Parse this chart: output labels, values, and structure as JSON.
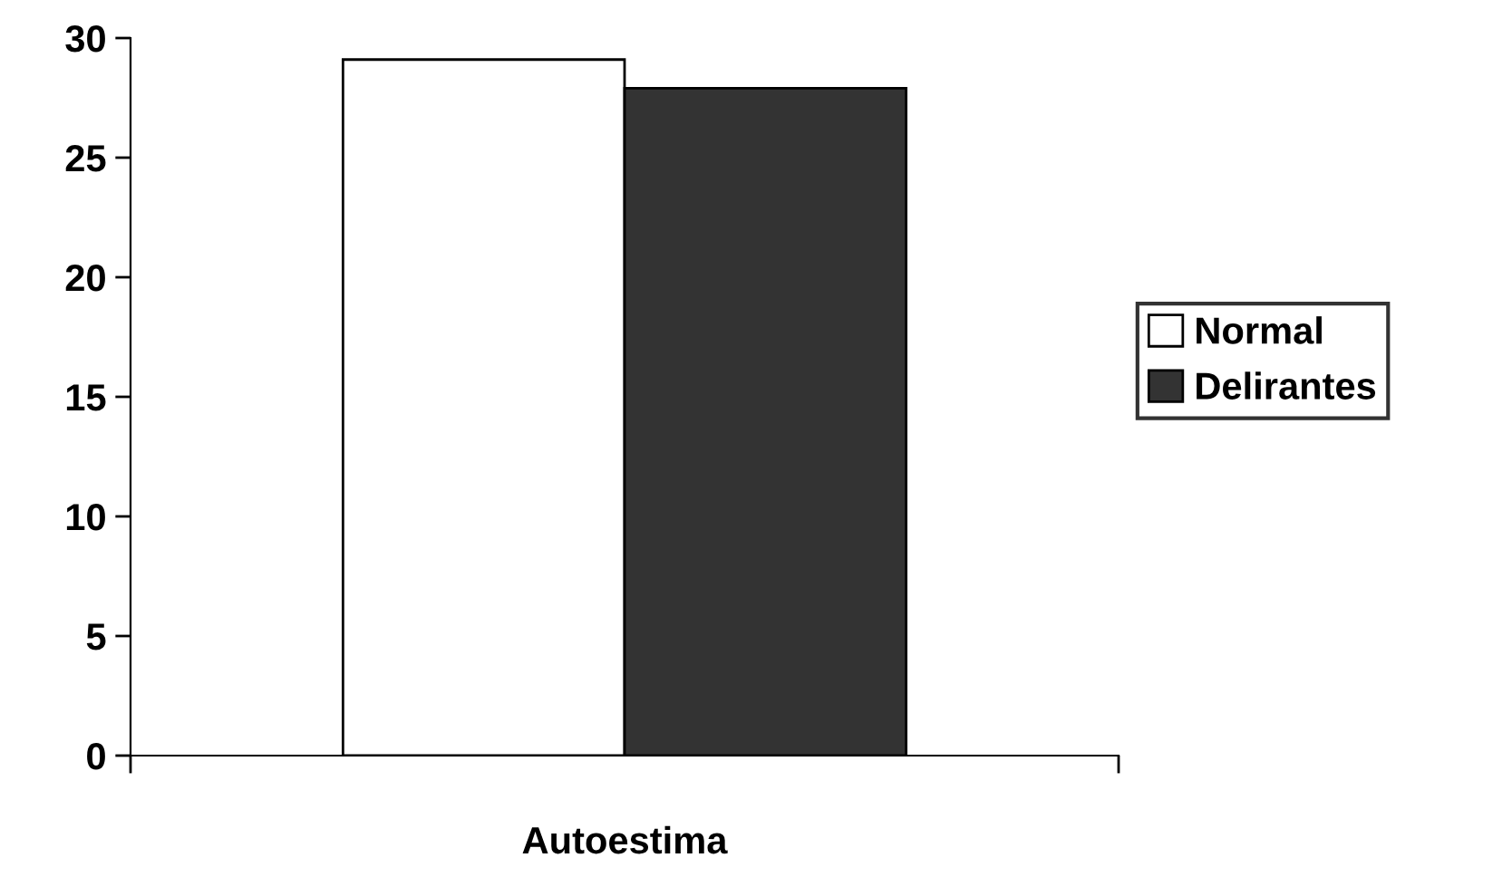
{
  "chart_data": {
    "type": "bar",
    "categories": [
      "Autoestima"
    ],
    "series": [
      {
        "name": "Normal",
        "color": "#ffffff",
        "values": [
          29.1
        ]
      },
      {
        "name": "Delirantes",
        "color": "#333333",
        "values": [
          27.9
        ]
      }
    ],
    "ylim": [
      0,
      30
    ],
    "yticks": [
      0,
      5,
      10,
      15,
      20,
      25,
      30
    ],
    "grid": false,
    "legend": "right"
  }
}
